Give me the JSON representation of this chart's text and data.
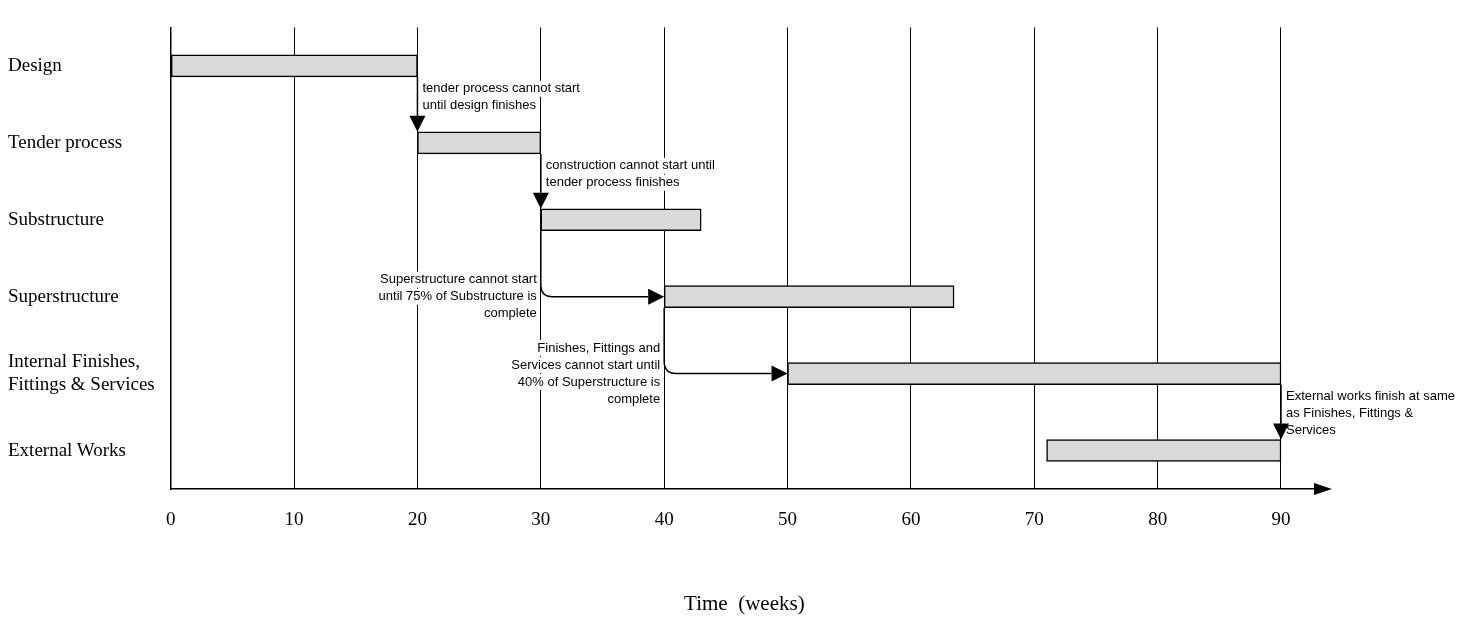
{
  "chart_data": {
    "type": "bar",
    "orientation": "horizontal",
    "xlabel": "Time  (weeks)",
    "categories": [
      "Design",
      "Tender process",
      "Substructure",
      "Superstructure",
      "Internal Finishes, Fittings & Services",
      "External Works"
    ],
    "values": [
      20,
      10,
      13,
      23.5,
      40,
      19
    ],
    "base": [
      0,
      20,
      30,
      40,
      50,
      71
    ],
    "color": "#d9d9d9",
    "xlim": [
      0,
      93
    ],
    "xticks": [
      0,
      10,
      20,
      30,
      40,
      50,
      60,
      70,
      80,
      90
    ],
    "grid": "x",
    "legend": false,
    "annotations": [
      {
        "text": "tender process cannot start until design finishes",
        "x": 20,
        "y": "Tender process"
      },
      {
        "text": "construction cannot start until tender process finishes",
        "x": 30,
        "y": "Substructure"
      },
      "Superstructure cannot start until 75% of Substructure is complete",
      "Finishes, Fittings and Services cannot start until 40% of Superstructure is complete",
      {
        "text": "External works finish at same as Finishes, Fittings & Services",
        "x": 90,
        "y": "External Works"
      }
    ]
  }
}
